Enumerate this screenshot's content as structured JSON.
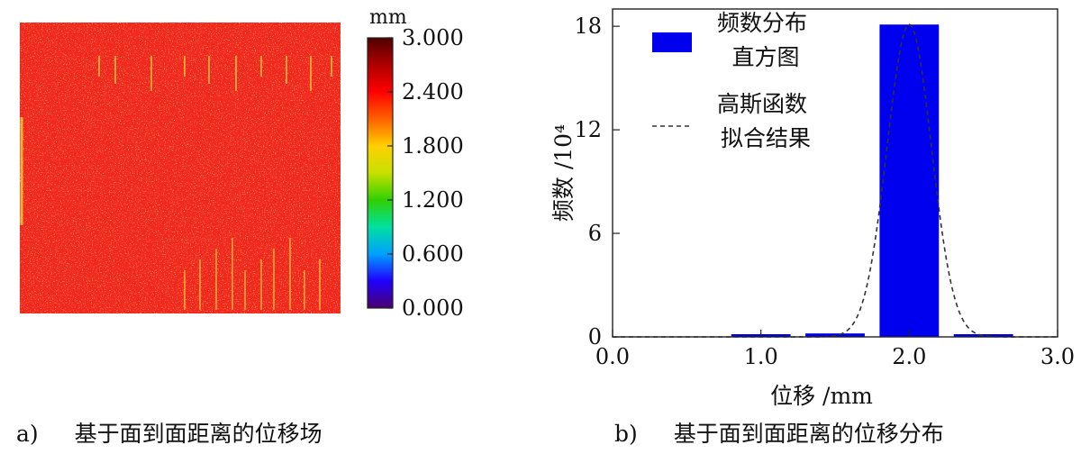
{
  "panel_a": {
    "colorbar": {
      "unit": "mm",
      "ticks": [
        "3.000",
        "2.400",
        "1.800",
        "1.200",
        "0.600",
        "0.000"
      ],
      "range": [
        0,
        3
      ],
      "colormap": [
        "#4a0070",
        "#2000ff",
        "#00a0ff",
        "#00e0a0",
        "#30d000",
        "#c8e000",
        "#ffd000",
        "#ff6000",
        "#ff0000",
        "#b00000",
        "#500000"
      ]
    },
    "field_color": "#f0281e",
    "field_speckle_color": "#ffd23c",
    "caption_label": "a)",
    "caption_text": "基于面到面距离的位移场"
  },
  "panel_b": {
    "caption_label": "b)",
    "caption_text": "基于面到面距离的位移分布"
  },
  "chart_data": [
    {
      "type": "bar",
      "xlabel": "位移 /mm",
      "ylabel": "频数 /10⁴",
      "xlim": [
        0,
        3
      ],
      "ylim": [
        0,
        19
      ],
      "xticks": [
        "0.0",
        "1.0",
        "2.0",
        "3.0"
      ],
      "yticks": [
        "0",
        "6",
        "12",
        "18"
      ],
      "bin_edges": [
        [
          0.8,
          1.2
        ],
        [
          1.3,
          1.7
        ],
        [
          1.8,
          2.2
        ],
        [
          2.3,
          2.7
        ]
      ],
      "values": [
        0.15,
        0.2,
        18.1,
        0.1
      ],
      "bar_color": "#0000ee",
      "legend_position": "top-left",
      "series": [
        {
          "name": "频数分布\n直方图",
          "kind": "bar"
        },
        {
          "name": "高斯函数\n拟合结果",
          "kind": "line",
          "style": "dashed",
          "gaussian": {
            "mean": 2.0,
            "sigma": 0.15,
            "amplitude": 18.1
          }
        }
      ]
    }
  ]
}
